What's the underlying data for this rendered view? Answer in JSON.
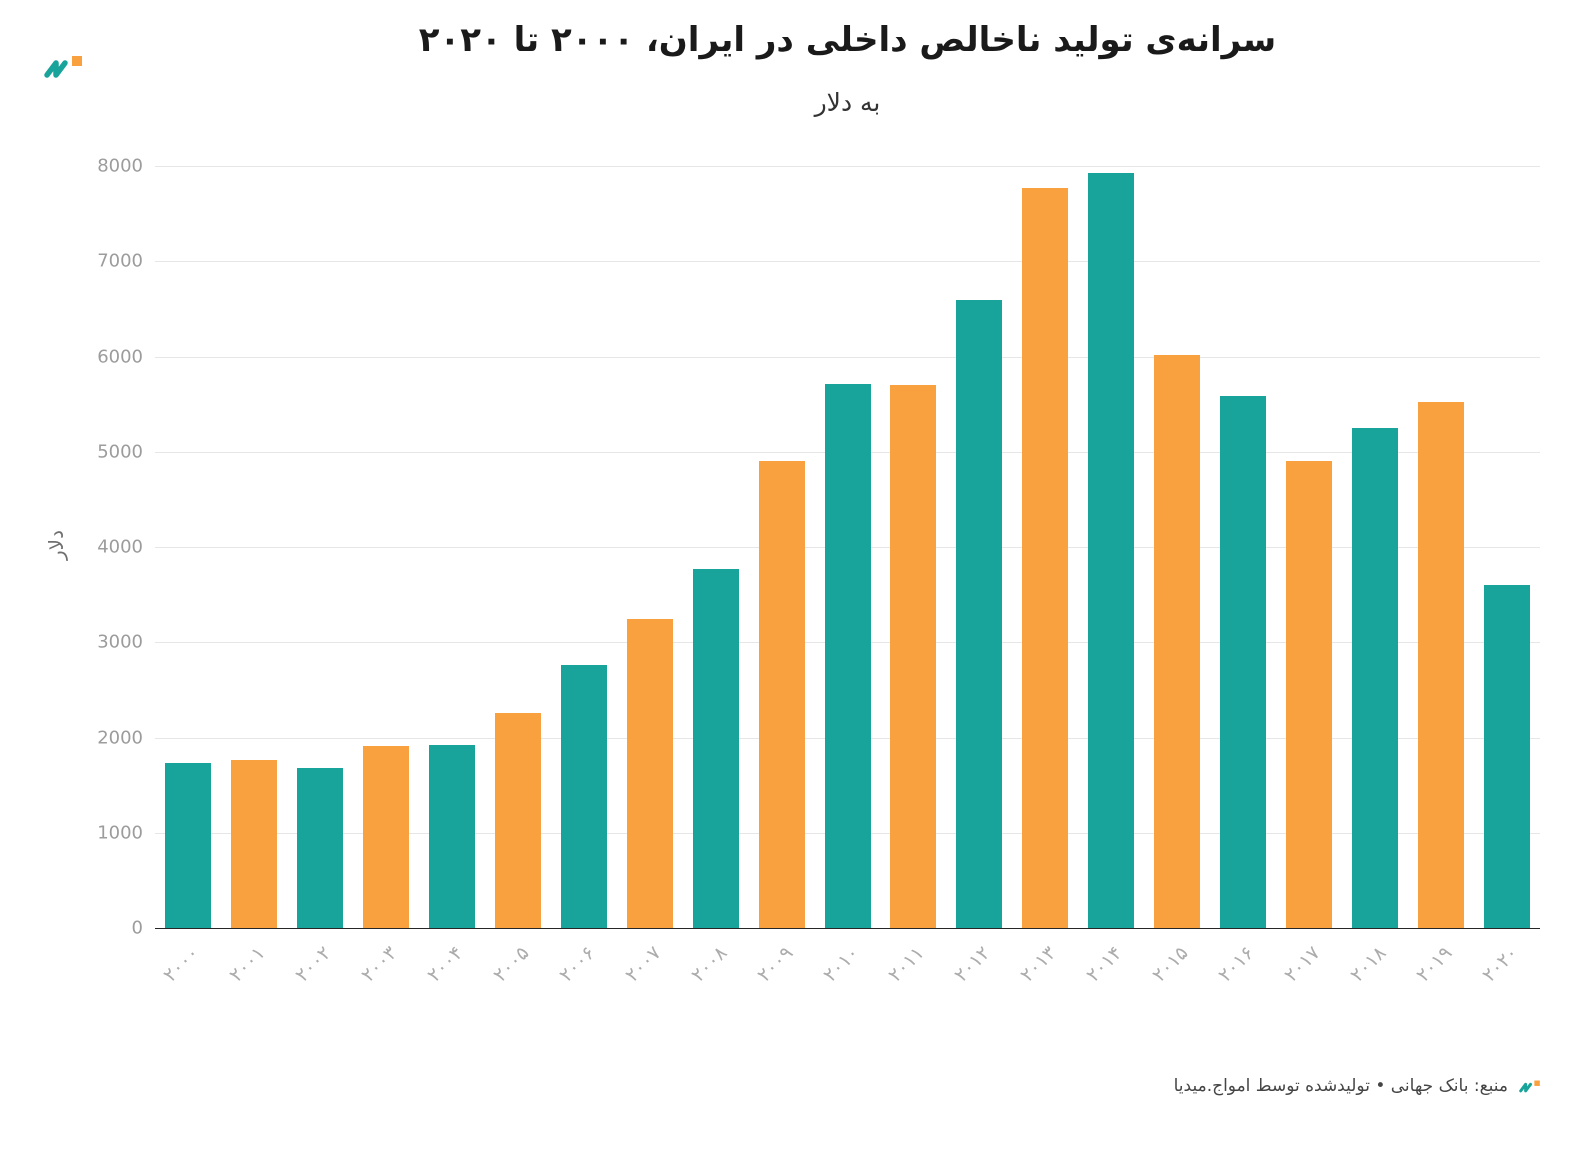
{
  "header": {
    "title": "سرانه‌ی تولید ناخالص داخلی در ایران، ۲۰۰۰ تا ۲۰۲۰",
    "subtitle": "به دلار"
  },
  "footer": {
    "source": "منبع: بانک جهانی • تولیدشده توسط امواج.میدیا"
  },
  "colors": {
    "teal": "#18A49A",
    "orange": "#F9A03F",
    "grid": "#E6E6E6",
    "baseline": "#262626",
    "y_tick_text": "#9C9C9C",
    "x_tick_text": "#ACACAC",
    "title_text": "#1A1A1A"
  },
  "chart_data": {
    "type": "bar",
    "title": "سرانه‌ی تولید ناخالص داخلی در ایران، ۲۰۰۰ تا ۲۰۲۰",
    "subtitle": "به دلار",
    "ylabel": "دلار",
    "xlabel": "",
    "ylim": [
      0,
      8000
    ],
    "yticks": [
      0,
      1000,
      2000,
      3000,
      4000,
      5000,
      6000,
      7000,
      8000
    ],
    "grid": true,
    "legend": "none",
    "categories": [
      "۲۰۰۰",
      "۲۰۰۱",
      "۲۰۰۲",
      "۲۰۰۳",
      "۲۰۰۴",
      "۲۰۰۵",
      "۲۰۰۶",
      "۲۰۰۷",
      "۲۰۰۸",
      "۲۰۰۹",
      "۲۰۱۰",
      "۲۰۱۱",
      "۲۰۱۲",
      "۲۰۱۳",
      "۲۰۱۴",
      "۲۰۱۵",
      "۲۰۱۶",
      "۲۰۱۷",
      "۲۰۱۸",
      "۲۰۱۹",
      "۲۰۲۰"
    ],
    "years": [
      2000,
      2001,
      2002,
      2003,
      2004,
      2005,
      2006,
      2007,
      2008,
      2009,
      2010,
      2011,
      2012,
      2013,
      2014,
      2015,
      2016,
      2017,
      2018,
      2019,
      2020
    ],
    "values": [
      1730,
      1760,
      1680,
      1910,
      1920,
      2260,
      2760,
      3240,
      3770,
      4900,
      5710,
      5700,
      6590,
      7770,
      7930,
      6020,
      5590,
      4900,
      5250,
      5520,
      3600
    ],
    "bar_colors": [
      "#18A49A",
      "#F9A03F"
    ],
    "bar_color_mode": "alternating",
    "source": "منبع: بانک جهانی • تولیدشده توسط امواج.میدیا"
  }
}
